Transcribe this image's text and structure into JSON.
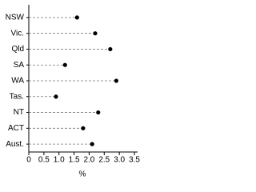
{
  "chart_data": {
    "type": "dot",
    "categories": [
      "NSW",
      "Vic.",
      "Qld",
      "SA",
      "WA",
      "Tas.",
      "NT",
      "ACT",
      "Aust."
    ],
    "values": [
      1.6,
      2.2,
      2.7,
      1.2,
      2.9,
      0.9,
      2.3,
      1.8,
      2.1
    ],
    "color": "#000000",
    "xlim": [
      0,
      3.5
    ],
    "xticks": [
      0,
      0.5,
      {
        "value": 1,
        "label": "1.0"
      },
      1.5,
      {
        "value": 2,
        "label": "2.0"
      },
      2.5,
      {
        "value": 3,
        "label": "3.0"
      },
      3.5
    ],
    "x_label": "%"
  }
}
